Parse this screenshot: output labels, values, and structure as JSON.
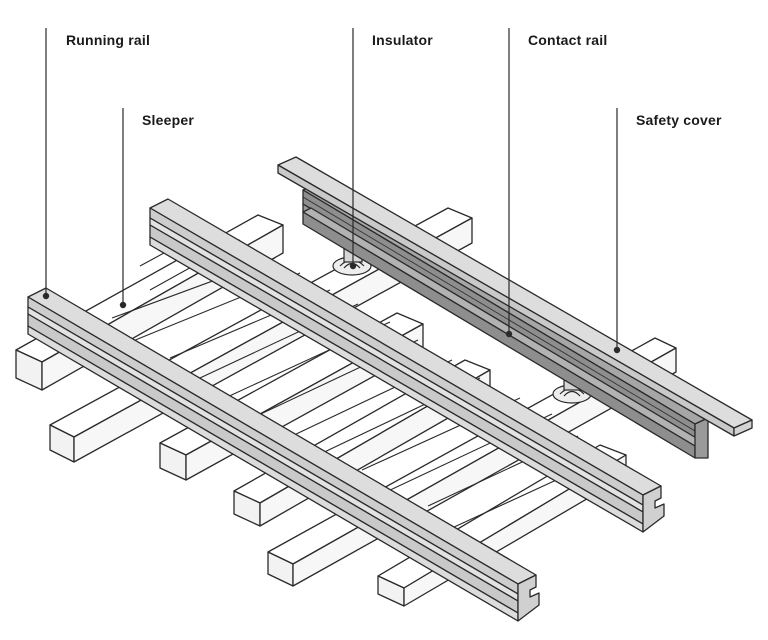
{
  "labels": {
    "running_rail": "Running rail",
    "sleeper": "Sleeper",
    "insulator": "Insulator",
    "contact_rail": "Contact rail",
    "safety_cover": "Safety cover"
  },
  "colors": {
    "outline": "#2a2a2a",
    "sleeper_fill": "#ffffff",
    "rail_light": "#dddddd",
    "rail_side": "#cdcdcd",
    "contact_rail_dark": "#a6a6a6",
    "contact_rail_side": "#8e8e8e",
    "insulator_fill": "#ededed"
  }
}
